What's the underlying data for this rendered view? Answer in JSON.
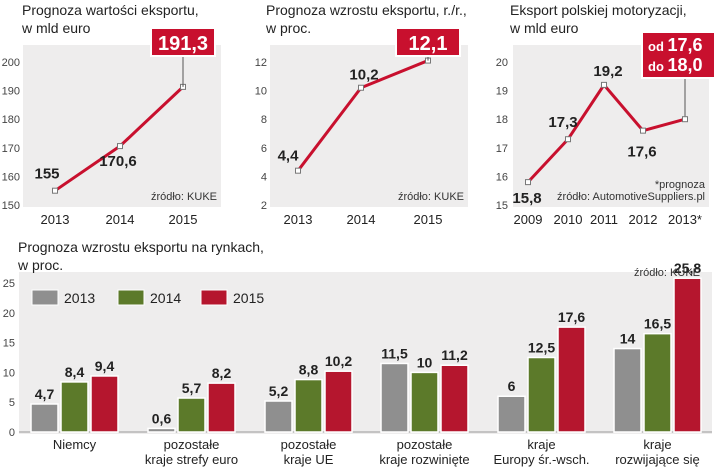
{
  "colors": {
    "bg": "#eeeded",
    "line": "#c8102e",
    "accent": "#c8102e",
    "grey": "#8f8f8f",
    "green": "#5c7a2a",
    "red": "#b5162e",
    "text": "#222222"
  },
  "chart_data": [
    {
      "type": "line",
      "title_lines": [
        "Prognoza wartości eksportu,",
        "w mld euro"
      ],
      "x": [
        "2013",
        "2014",
        "2015"
      ],
      "values": [
        155,
        170.6,
        191.3
      ],
      "labels": [
        "155",
        "170,6",
        "191,3"
      ],
      "ylim": [
        150,
        200
      ],
      "yticks": [
        "150",
        "160",
        "170",
        "180",
        "190",
        "200"
      ],
      "highlight_index": 2,
      "source": "źródło: KUKE"
    },
    {
      "type": "line",
      "title_lines": [
        "Prognoza wzrostu eksportu, r./r.,",
        "w proc."
      ],
      "x": [
        "2013",
        "2014",
        "2015"
      ],
      "values": [
        4.4,
        10.2,
        12.1
      ],
      "labels": [
        "4,4",
        "10,2",
        "12,1"
      ],
      "ylim": [
        2,
        12
      ],
      "yticks": [
        "2",
        "4",
        "6",
        "8",
        "10",
        "12"
      ],
      "highlight_index": 2,
      "source": "źródło: KUKE"
    },
    {
      "type": "line",
      "title_lines": [
        "Eksport polskiej motoryzacji,",
        "w mld euro"
      ],
      "x": [
        "2009",
        "2010",
        "2011",
        "2012",
        "2013*"
      ],
      "values": [
        15.8,
        17.3,
        19.2,
        17.6,
        18.0
      ],
      "labels": [
        "15,8",
        "17,3",
        "19,2",
        "17,6",
        ""
      ],
      "ylim": [
        15,
        20
      ],
      "yticks": [
        "15",
        "16",
        "17",
        "18",
        "19",
        "20"
      ],
      "highlight_index": 4,
      "highlight_lines": [
        "od 17,6",
        "do 18,0"
      ],
      "note": "*prognoza",
      "source": "źródło: AutomotiveSuppliers.pl"
    },
    {
      "type": "bar",
      "title_lines": [
        "Prognoza wzrostu eksportu na rynkach,",
        "w proc."
      ],
      "categories": [
        [
          "Niemcy"
        ],
        [
          "pozostałe",
          "kraje strefy euro"
        ],
        [
          "pozostałe",
          "kraje UE"
        ],
        [
          "pozostałe",
          "kraje rozwinięte"
        ],
        [
          "kraje",
          "Europy śr.-wsch."
        ],
        [
          "kraje",
          "rozwijające się"
        ]
      ],
      "series": [
        {
          "name": "2013",
          "values": [
            4.7,
            0.6,
            5.2,
            11.5,
            6,
            14
          ],
          "labels": [
            "4,7",
            "0,6",
            "5,2",
            "11,5",
            "6",
            "14"
          ]
        },
        {
          "name": "2014",
          "values": [
            8.4,
            5.7,
            8.8,
            10,
            12.5,
            16.5
          ],
          "labels": [
            "8,4",
            "5,7",
            "8,8",
            "10",
            "12,5",
            "16,5"
          ]
        },
        {
          "name": "2015",
          "values": [
            9.4,
            8.2,
            10.2,
            11.2,
            17.6,
            25.8
          ],
          "labels": [
            "9,4",
            "8,2",
            "10,2",
            "11,2",
            "17,6",
            "25,8"
          ]
        }
      ],
      "ylim": [
        0,
        25
      ],
      "yticks": [
        "0",
        "5",
        "10",
        "15",
        "20",
        "25"
      ],
      "legend": [
        "2013",
        "2014",
        "2015"
      ],
      "source": "źródło: KUKE"
    }
  ]
}
